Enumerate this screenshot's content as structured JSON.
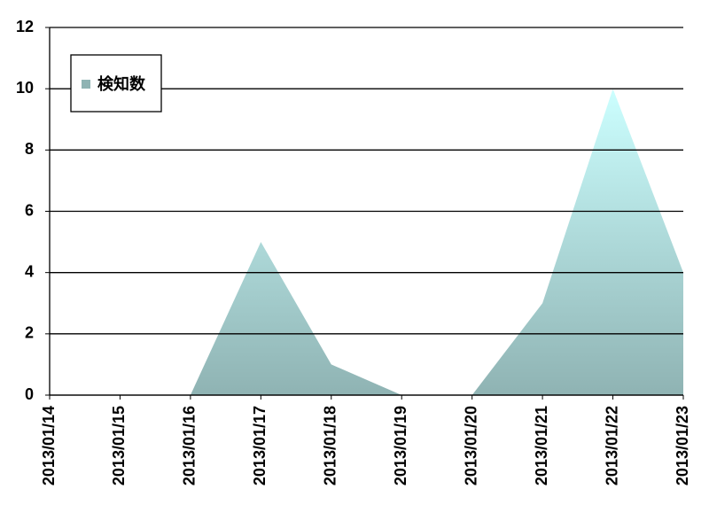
{
  "chart_data": {
    "type": "area",
    "categories": [
      "2013/01/14",
      "2013/01/15",
      "2013/01/16",
      "2013/01/17",
      "2013/01/18",
      "2013/01/19",
      "2013/01/20",
      "2013/01/21",
      "2013/01/22",
      "2013/01/23"
    ],
    "series": [
      {
        "name": "検知数",
        "color": "#8fb3b3",
        "values": [
          0,
          0,
          0,
          5,
          1,
          0,
          0,
          3,
          10,
          4
        ]
      }
    ],
    "ylim": [
      0,
      12
    ],
    "yticks": [
      0,
      2,
      4,
      6,
      8,
      10,
      12
    ],
    "grid": true,
    "legend": "upper left"
  }
}
